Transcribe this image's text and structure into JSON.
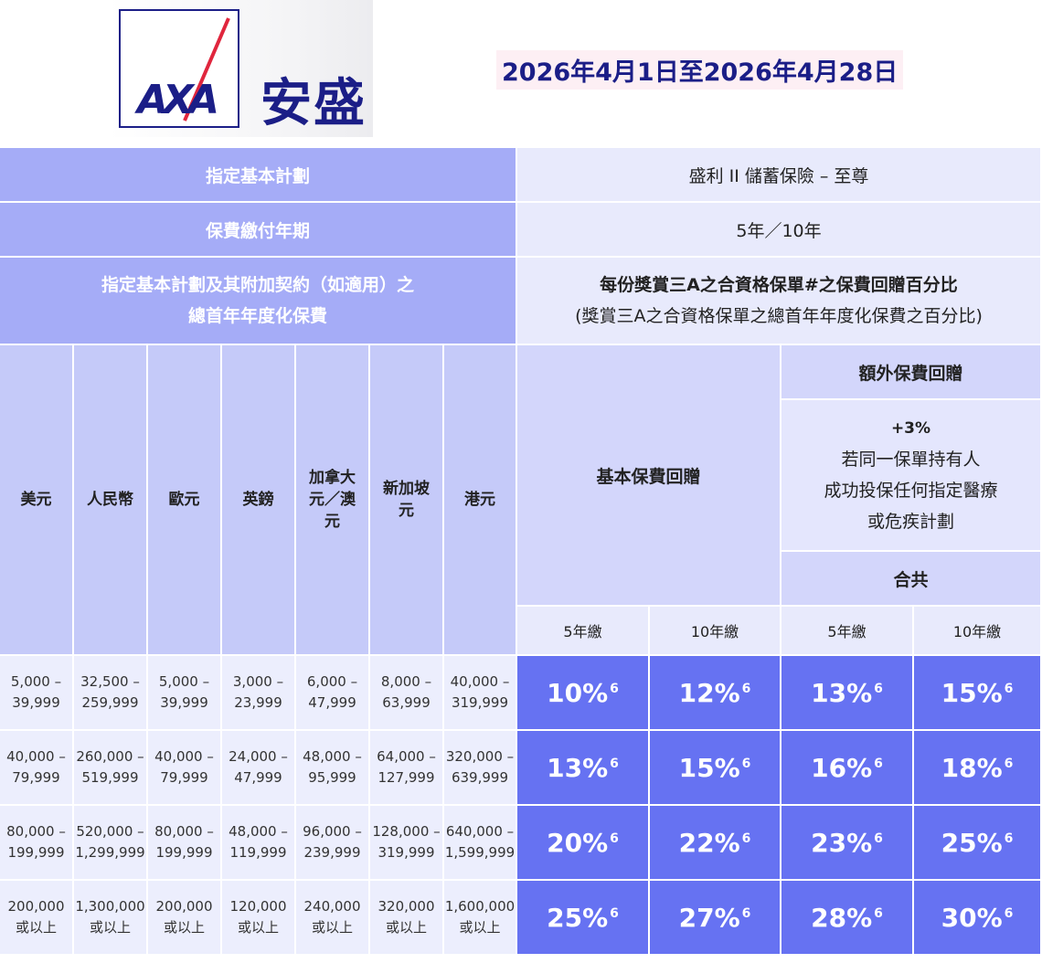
{
  "header": {
    "logo_text": "AXA",
    "brand_cn": "安盛",
    "date_range": "2026年4月1日至2026年4月28日"
  },
  "table": {
    "plan_label": "指定基本計劃",
    "plan_value": "盛利 II 儲蓄保險 – 至尊",
    "term_label": "保費繳付年期",
    "term_value": "5年／10年",
    "premium_label_1": "指定基本計劃及其附加契約（如適用）之",
    "premium_label_2": "總首年年度化保費",
    "rebate_title_1": "每份獎賞三A之合資格保單#之保費回贈百分比",
    "rebate_title_2": "(獎賞三A之合資格保單之總首年年度化保費之百分比)",
    "currencies": [
      "美元",
      "人民幣",
      "歐元",
      "英鎊",
      "加拿大元／澳元",
      "新加坡元",
      "港元"
    ],
    "basic_rebate": "基本保費回贈",
    "extra_rebate": "額外保費回贈",
    "extra_detail": [
      "+3%",
      "若同一保單持有人",
      "成功投保任何指定醫療",
      "或危疾計劃"
    ],
    "total": "合共",
    "year_cols": [
      "5年繳",
      "10年繳",
      "5年繳",
      "10年繳"
    ],
    "rows": [
      {
        "bands": [
          "5,000 –\n39,999",
          "32,500 –\n259,999",
          "5,000 –\n39,999",
          "3,000 –\n23,999",
          "6,000 –\n47,999",
          "8,000 –\n63,999",
          "40,000 –\n319,999"
        ],
        "rates": [
          "10%",
          "12%",
          "13%",
          "15%"
        ]
      },
      {
        "bands": [
          "40,000 –\n79,999",
          "260,000 –\n519,999",
          "40,000 –\n79,999",
          "24,000 –\n47,999",
          "48,000 –\n95,999",
          "64,000 –\n127,999",
          "320,000 –\n639,999"
        ],
        "rates": [
          "13%",
          "15%",
          "16%",
          "18%"
        ]
      },
      {
        "bands": [
          "80,000 –\n199,999",
          "520,000 –\n1,299,999",
          "80,000 –\n199,999",
          "48,000 –\n119,999",
          "96,000 –\n239,999",
          "128,000 –\n319,999",
          "640,000 –\n1,599,999"
        ],
        "rates": [
          "20%",
          "22%",
          "23%",
          "25%"
        ]
      },
      {
        "bands": [
          "200,000\n或以上",
          "1,300,000\n或以上",
          "200,000\n或以上",
          "120,000\n或以上",
          "240,000\n或以上",
          "320,000\n或以上",
          "1,600,000\n或以上"
        ],
        "rates": [
          "25%",
          "27%",
          "28%",
          "30%"
        ]
      }
    ],
    "footnote_mark": "6"
  }
}
